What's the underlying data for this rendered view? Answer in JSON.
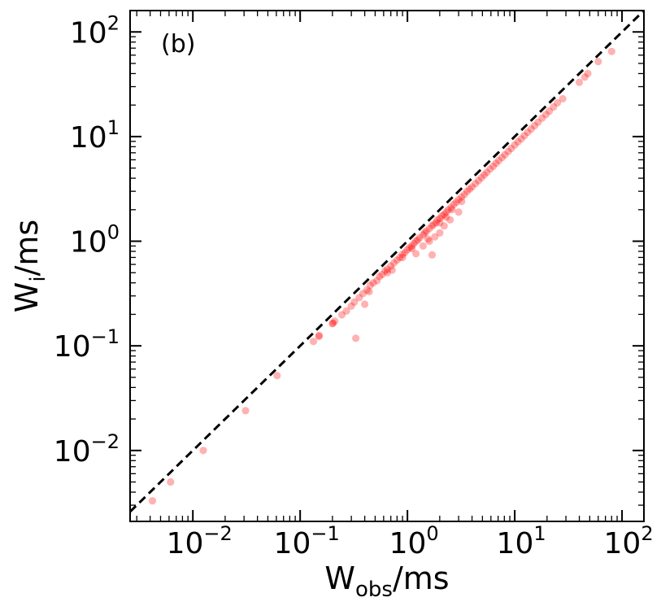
{
  "chart_data": {
    "type": "scatter",
    "panel_label": "(b)",
    "xlabel": {
      "main": "W",
      "sub": "obs",
      "unit": "/ms"
    },
    "ylabel": {
      "main": "W",
      "sub": "i",
      "unit": "/ms"
    },
    "x_scale": "log",
    "y_scale": "log",
    "xlim": [
      0.0026,
      160
    ],
    "ylim": [
      0.0021,
      160
    ],
    "x_ticks": [
      {
        "value": 0.01,
        "base": "10",
        "exp": "−2"
      },
      {
        "value": 0.1,
        "base": "10",
        "exp": "−1"
      },
      {
        "value": 1,
        "base": "10",
        "exp": "0"
      },
      {
        "value": 10,
        "base": "10",
        "exp": "1"
      },
      {
        "value": 100,
        "base": "10",
        "exp": "2"
      }
    ],
    "y_ticks": [
      {
        "value": 0.01,
        "base": "10",
        "exp": "−2"
      },
      {
        "value": 0.1,
        "base": "10",
        "exp": "−1"
      },
      {
        "value": 1,
        "base": "10",
        "exp": "0"
      },
      {
        "value": 10,
        "base": "10",
        "exp": "1"
      },
      {
        "value": 100,
        "base": "10",
        "exp": "2"
      }
    ],
    "grid": false,
    "reference_line": {
      "style": "dashed",
      "color": "#000000",
      "relation": "y = x"
    },
    "point_color": "#ff0000",
    "point_opacity": 0.3,
    "points": [
      [
        0.0042,
        0.0033
      ],
      [
        0.0062,
        0.005
      ],
      [
        0.0125,
        0.01
      ],
      [
        0.031,
        0.024
      ],
      [
        0.061,
        0.052
      ],
      [
        0.133,
        0.11
      ],
      [
        0.15,
        0.123
      ],
      [
        0.15,
        0.126
      ],
      [
        0.202,
        0.165
      ],
      [
        0.2,
        0.163
      ],
      [
        0.21,
        0.172
      ],
      [
        0.245,
        0.198
      ],
      [
        0.27,
        0.215
      ],
      [
        0.3,
        0.24
      ],
      [
        0.33,
        0.118
      ],
      [
        0.32,
        0.262
      ],
      [
        0.355,
        0.289
      ],
      [
        0.385,
        0.316
      ],
      [
        0.4,
        0.25
      ],
      [
        0.42,
        0.342
      ],
      [
        0.44,
        0.33
      ],
      [
        0.45,
        0.38
      ],
      [
        0.48,
        0.4
      ],
      [
        0.52,
        0.42
      ],
      [
        0.55,
        0.46
      ],
      [
        0.58,
        0.48
      ],
      [
        0.62,
        0.52
      ],
      [
        0.65,
        0.54
      ],
      [
        0.7,
        0.58
      ],
      [
        0.72,
        0.53
      ],
      [
        0.75,
        0.62
      ],
      [
        0.8,
        0.66
      ],
      [
        0.85,
        0.7
      ],
      [
        0.9,
        0.75
      ],
      [
        0.95,
        0.78
      ],
      [
        1.0,
        0.83
      ],
      [
        1.05,
        0.87
      ],
      [
        1.1,
        0.9
      ],
      [
        1.15,
        0.95
      ],
      [
        1.2,
        1.0
      ],
      [
        1.25,
        1.03
      ],
      [
        1.3,
        1.08
      ],
      [
        1.4,
        1.15
      ],
      [
        1.45,
        1.2
      ],
      [
        1.5,
        1.25
      ],
      [
        1.6,
        1.32
      ],
      [
        1.7,
        1.4
      ],
      [
        1.75,
        1.45
      ],
      [
        1.85,
        1.5
      ],
      [
        1.9,
        1.6
      ],
      [
        2.0,
        1.65
      ],
      [
        2.1,
        1.75
      ],
      [
        2.2,
        1.8
      ],
      [
        2.3,
        1.9
      ],
      [
        2.4,
        2.0
      ],
      [
        2.55,
        2.1
      ],
      [
        2.7,
        2.25
      ],
      [
        2.85,
        2.35
      ],
      [
        3.0,
        2.5
      ],
      [
        3.2,
        2.65
      ],
      [
        3.4,
        2.8
      ],
      [
        3.6,
        3.0
      ],
      [
        3.8,
        3.15
      ],
      [
        4.0,
        3.3
      ],
      [
        4.3,
        3.55
      ],
      [
        4.6,
        3.8
      ],
      [
        4.9,
        4.05
      ],
      [
        5.2,
        4.3
      ],
      [
        5.5,
        4.55
      ],
      [
        5.9,
        4.9
      ],
      [
        6.3,
        5.2
      ],
      [
        6.7,
        5.55
      ],
      [
        7.1,
        5.9
      ],
      [
        7.6,
        6.3
      ],
      [
        8.1,
        6.7
      ],
      [
        8.7,
        7.2
      ],
      [
        9.3,
        7.7
      ],
      [
        10.0,
        8.3
      ],
      [
        10.7,
        8.9
      ],
      [
        11.5,
        9.5
      ],
      [
        12.3,
        10.2
      ],
      [
        13.2,
        11.0
      ],
      [
        14.2,
        11.8
      ],
      [
        15.3,
        12.7
      ],
      [
        16.5,
        13.7
      ],
      [
        18.0,
        15.0
      ],
      [
        19.5,
        16.2
      ],
      [
        21.0,
        17.5
      ],
      [
        23.0,
        19.2
      ],
      [
        25.0,
        21.0
      ],
      [
        28.0,
        23.0
      ],
      [
        1.2,
        0.76
      ],
      [
        1.4,
        0.9
      ],
      [
        1.6,
        1.0
      ],
      [
        1.7,
        0.74
      ],
      [
        1.8,
        1.1
      ],
      [
        2.0,
        1.2
      ],
      [
        2.2,
        1.4
      ],
      [
        2.5,
        1.6
      ],
      [
        3.0,
        1.9
      ],
      [
        2.0,
        1.5
      ],
      [
        2.6,
        2.0
      ],
      [
        3.2,
        2.4
      ],
      [
        1.55,
        1.05
      ],
      [
        2.3,
        1.7
      ],
      [
        0.65,
        0.5
      ],
      [
        0.9,
        0.7
      ],
      [
        1.1,
        0.85
      ],
      [
        40.0,
        33.0
      ],
      [
        45.0,
        37.0
      ],
      [
        48.0,
        40.0
      ],
      [
        60.0,
        52.0
      ],
      [
        80.0,
        65.0
      ]
    ]
  }
}
